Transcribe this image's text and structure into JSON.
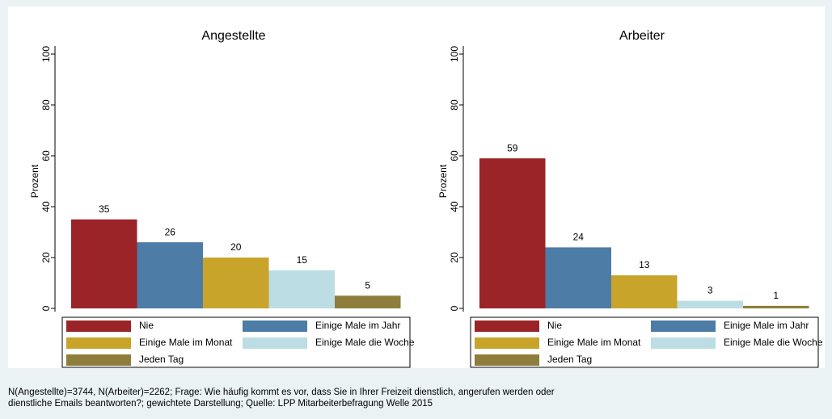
{
  "chart_data": [
    {
      "type": "bar",
      "title": "Angestellte",
      "ylabel": "Prozent",
      "series": [
        {
          "name": "Nie",
          "color": "#9a2428",
          "values": [
            35
          ]
        },
        {
          "name": "Einige Male im Jahr",
          "color": "#4d7ca7",
          "values": [
            26
          ]
        },
        {
          "name": "Einige Male im Monat",
          "color": "#c9a42b",
          "values": [
            20
          ]
        },
        {
          "name": "Einige Male die Woche",
          "color": "#bcdde4",
          "values": [
            15
          ]
        },
        {
          "name": "Jeden Tag",
          "color": "#8f7d3c",
          "values": [
            5
          ]
        }
      ],
      "ylim": [
        0,
        100
      ],
      "yticks": [
        0,
        20,
        40,
        60,
        80,
        100
      ],
      "grid": false,
      "legend": "bottom"
    },
    {
      "type": "bar",
      "title": "Arbeiter",
      "ylabel": "Prozent",
      "series": [
        {
          "name": "Nie",
          "color": "#9a2428",
          "values": [
            59
          ]
        },
        {
          "name": "Einige Male im Jahr",
          "color": "#4d7ca7",
          "values": [
            24
          ]
        },
        {
          "name": "Einige Male im Monat",
          "color": "#c9a42b",
          "values": [
            13
          ]
        },
        {
          "name": "Einige Male die Woche",
          "color": "#bcdde4",
          "values": [
            3
          ]
        },
        {
          "name": "Jeden Tag",
          "color": "#8f7d3c",
          "values": [
            1
          ]
        }
      ],
      "ylim": [
        0,
        100
      ],
      "yticks": [
        0,
        20,
        40,
        60,
        80,
        100
      ],
      "grid": false,
      "legend": "bottom"
    }
  ],
  "note": [
    "N(Angestellte)=3744, N(Arbeiter)=2262; Frage: Wie häufig kommt es vor, dass Sie in Ihrer Freizeit  dienstlich, angerufen werden oder",
    "dienstliche Emails beantworten?; gewichtete Darstellung; Quelle: LPP Mitarbeiterbefragung Welle 2015"
  ]
}
